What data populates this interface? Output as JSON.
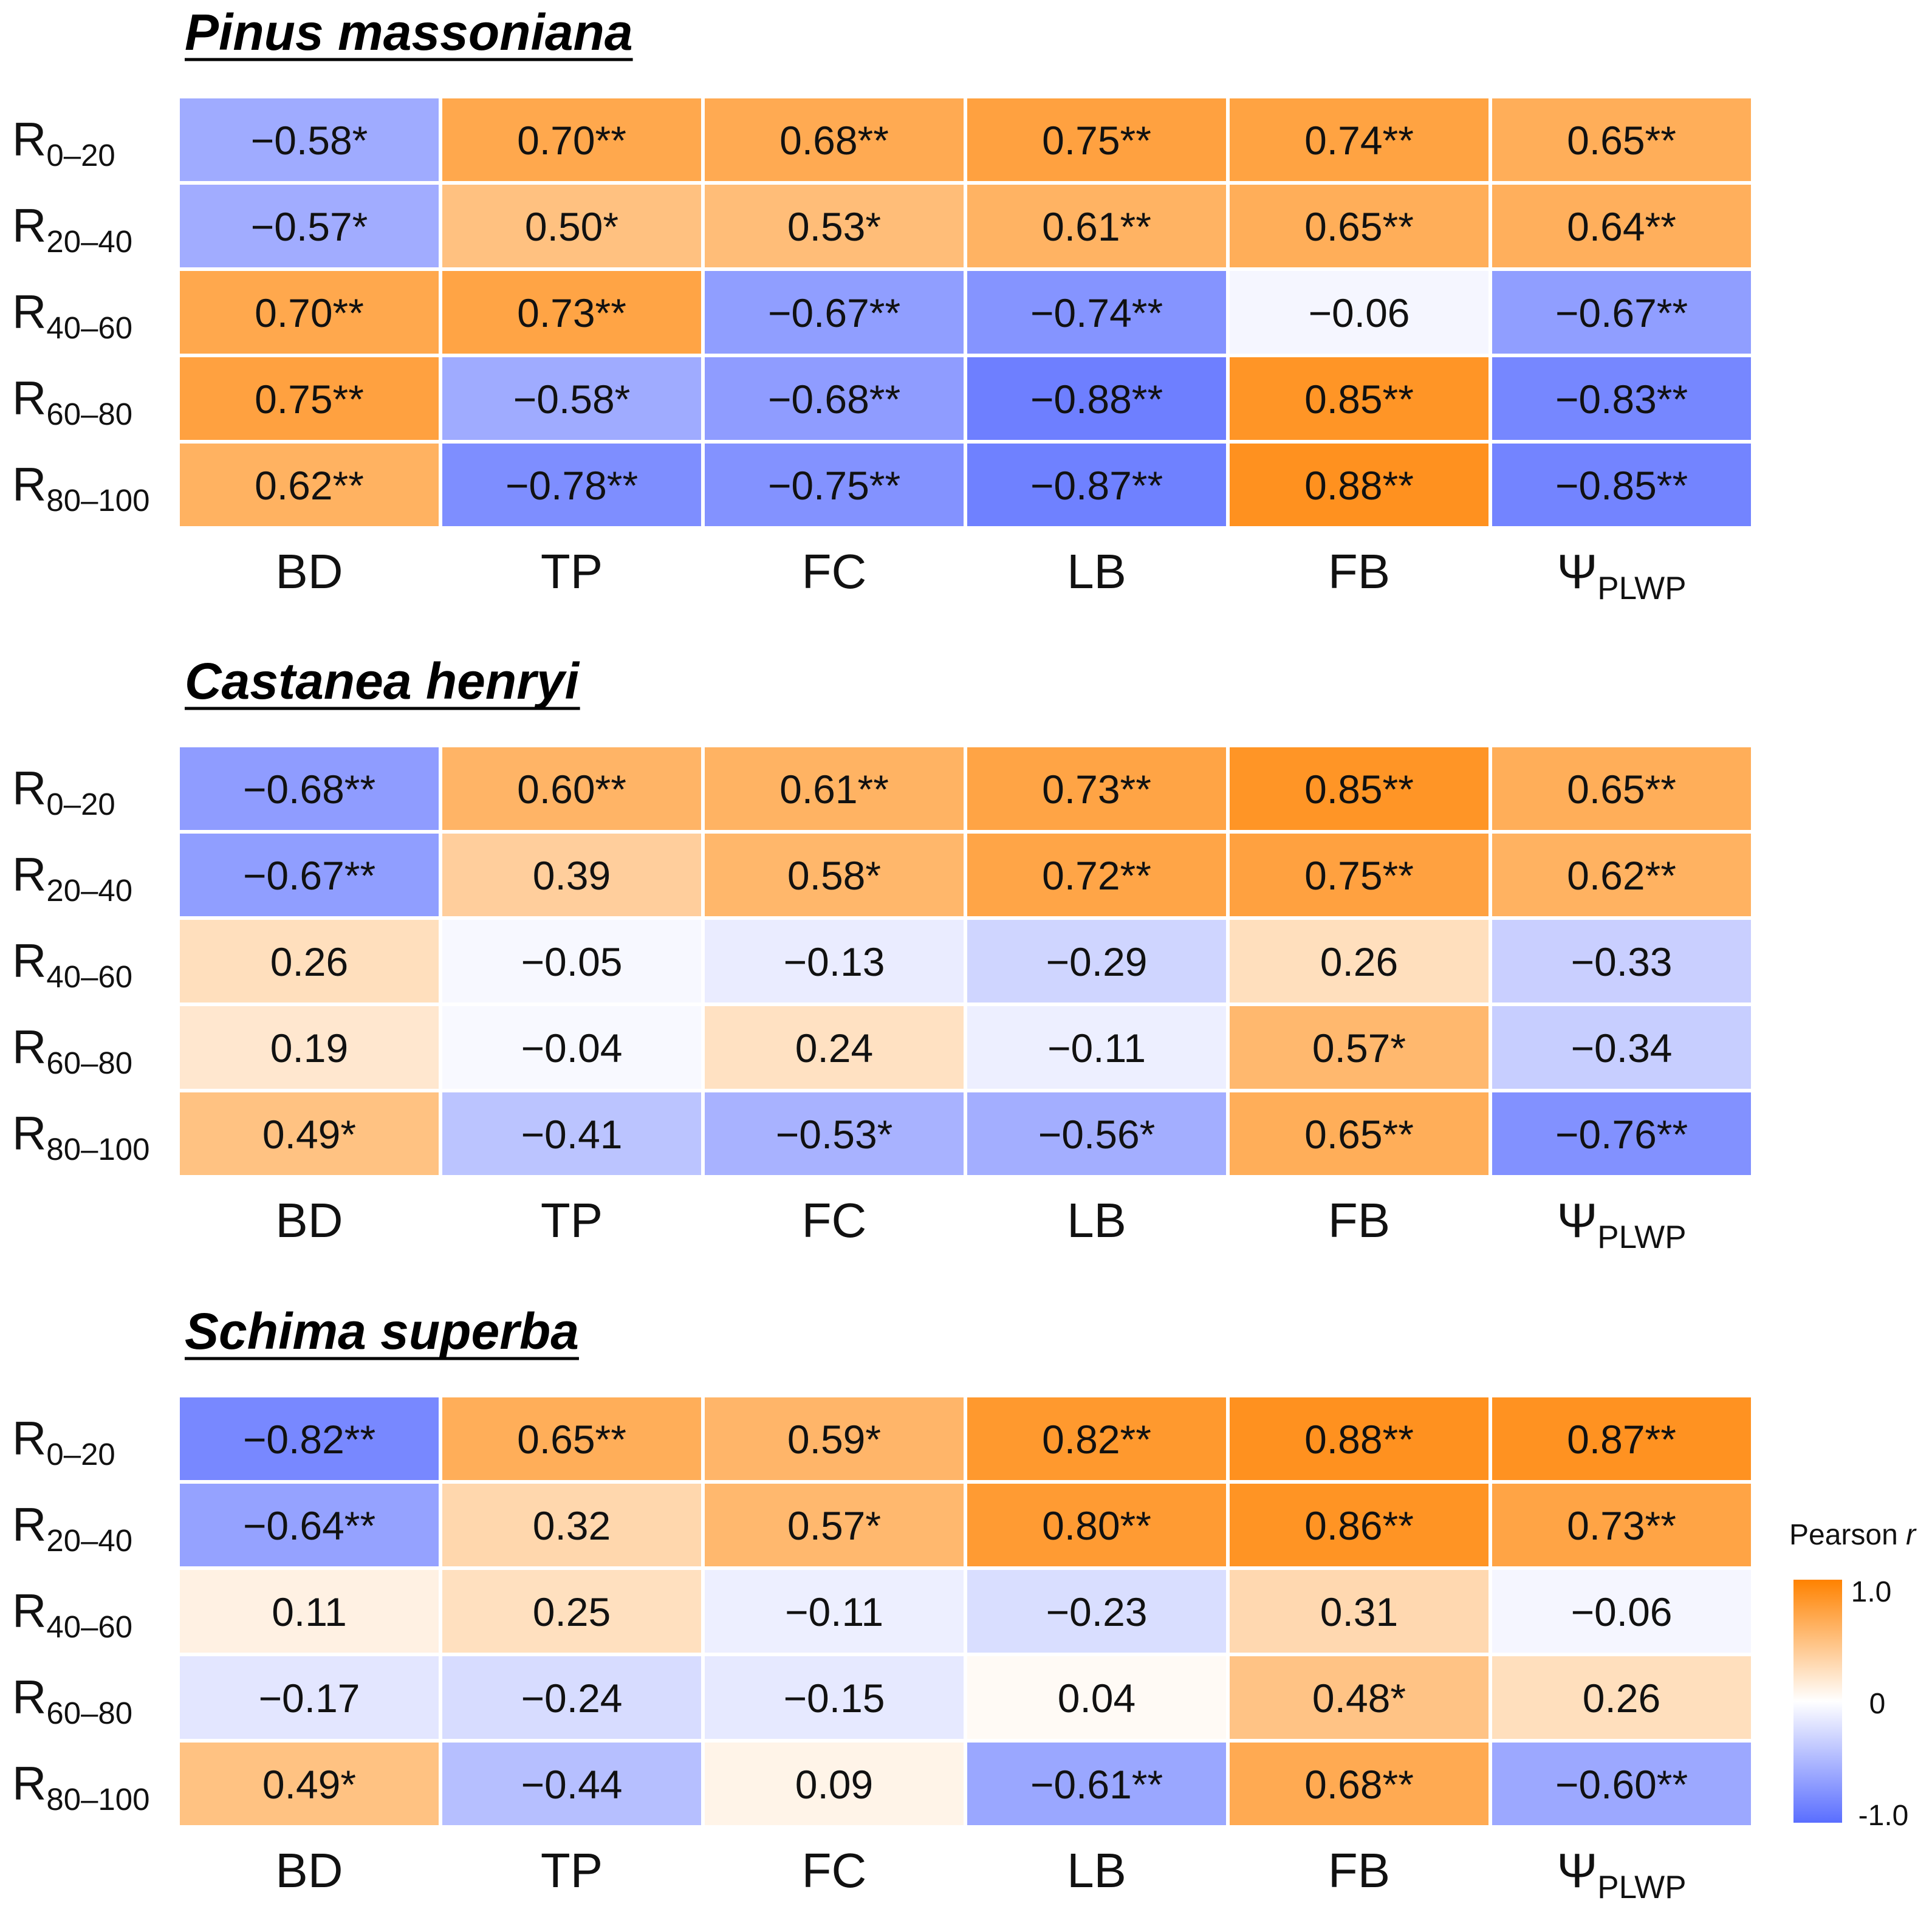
{
  "chart_data": [
    {
      "type": "heatmap",
      "title": "Pinus massoniana",
      "rows": [
        {
          "base": "R",
          "sub": "0–20"
        },
        {
          "base": "R",
          "sub": "20–40"
        },
        {
          "base": "R",
          "sub": "40–60"
        },
        {
          "base": "R",
          "sub": "60–80"
        },
        {
          "base": "R",
          "sub": "80–100"
        }
      ],
      "columns": [
        {
          "base": "BD",
          "sub": ""
        },
        {
          "base": "TP",
          "sub": ""
        },
        {
          "base": "FC",
          "sub": ""
        },
        {
          "base": "LB",
          "sub": ""
        },
        {
          "base": "FB",
          "sub": ""
        },
        {
          "base": "Ψ",
          "sub": "PLWP"
        }
      ],
      "values": [
        [
          -0.58,
          0.7,
          0.68,
          0.75,
          0.74,
          0.65
        ],
        [
          -0.57,
          0.5,
          0.53,
          0.61,
          0.65,
          0.64
        ],
        [
          0.7,
          0.73,
          -0.67,
          -0.74,
          -0.06,
          -0.67
        ],
        [
          0.75,
          -0.58,
          -0.68,
          -0.88,
          0.85,
          -0.83
        ],
        [
          0.62,
          -0.78,
          -0.75,
          -0.87,
          0.88,
          -0.85
        ]
      ],
      "labels": [
        [
          "−0.58*",
          "0.70**",
          "0.68**",
          "0.75**",
          "0.74**",
          "0.65**"
        ],
        [
          "−0.57*",
          "0.50*",
          "0.53*",
          "0.61**",
          "0.65**",
          "0.64**"
        ],
        [
          "0.70**",
          "0.73**",
          "−0.67**",
          "−0.74**",
          "−0.06",
          "−0.67**"
        ],
        [
          "0.75**",
          "−0.58*",
          "−0.68**",
          "−0.88**",
          "0.85**",
          "−0.83**"
        ],
        [
          "0.62**",
          "−0.78**",
          "−0.75**",
          "−0.87**",
          "0.88**",
          "−0.85**"
        ]
      ]
    },
    {
      "type": "heatmap",
      "title": "Castanea henryi",
      "rows": [
        {
          "base": "R",
          "sub": "0–20"
        },
        {
          "base": "R",
          "sub": "20–40"
        },
        {
          "base": "R",
          "sub": "40–60"
        },
        {
          "base": "R",
          "sub": "60–80"
        },
        {
          "base": "R",
          "sub": "80–100"
        }
      ],
      "columns": [
        {
          "base": "BD",
          "sub": ""
        },
        {
          "base": "TP",
          "sub": ""
        },
        {
          "base": "FC",
          "sub": ""
        },
        {
          "base": "LB",
          "sub": ""
        },
        {
          "base": "FB",
          "sub": ""
        },
        {
          "base": "Ψ",
          "sub": "PLWP"
        }
      ],
      "values": [
        [
          -0.68,
          0.6,
          0.61,
          0.73,
          0.85,
          0.65
        ],
        [
          -0.67,
          0.39,
          0.58,
          0.72,
          0.75,
          0.62
        ],
        [
          0.26,
          -0.05,
          -0.13,
          -0.29,
          0.26,
          -0.33
        ],
        [
          0.19,
          -0.04,
          0.24,
          -0.11,
          0.57,
          -0.34
        ],
        [
          0.49,
          -0.41,
          -0.53,
          -0.56,
          0.65,
          -0.76
        ]
      ],
      "labels": [
        [
          "−0.68**",
          "0.60**",
          "0.61**",
          "0.73**",
          "0.85**",
          "0.65**"
        ],
        [
          "−0.67**",
          "0.39",
          "0.58*",
          "0.72**",
          "0.75**",
          "0.62**"
        ],
        [
          "0.26",
          "−0.05",
          "−0.13",
          "−0.29",
          "0.26",
          "−0.33"
        ],
        [
          "0.19",
          "−0.04",
          "0.24",
          "−0.11",
          "0.57*",
          "−0.34"
        ],
        [
          "0.49*",
          "−0.41",
          "−0.53*",
          "−0.56*",
          "0.65**",
          "−0.76**"
        ]
      ]
    },
    {
      "type": "heatmap",
      "title": "Schima superba",
      "rows": [
        {
          "base": "R",
          "sub": "0–20"
        },
        {
          "base": "R",
          "sub": "20–40"
        },
        {
          "base": "R",
          "sub": "40–60"
        },
        {
          "base": "R",
          "sub": "60–80"
        },
        {
          "base": "R",
          "sub": "80–100"
        }
      ],
      "columns": [
        {
          "base": "BD",
          "sub": ""
        },
        {
          "base": "TP",
          "sub": ""
        },
        {
          "base": "FC",
          "sub": ""
        },
        {
          "base": "LB",
          "sub": ""
        },
        {
          "base": "FB",
          "sub": ""
        },
        {
          "base": "Ψ",
          "sub": "PLWP"
        }
      ],
      "values": [
        [
          -0.82,
          0.65,
          0.59,
          0.82,
          0.88,
          0.87
        ],
        [
          -0.64,
          0.32,
          0.57,
          0.8,
          0.86,
          0.73
        ],
        [
          0.11,
          0.25,
          -0.11,
          -0.23,
          0.31,
          -0.06
        ],
        [
          -0.17,
          -0.24,
          -0.15,
          0.04,
          0.48,
          0.26
        ],
        [
          0.49,
          -0.44,
          0.09,
          -0.61,
          0.68,
          -0.6
        ]
      ],
      "labels": [
        [
          "−0.82**",
          "0.65**",
          "0.59*",
          "0.82**",
          "0.88**",
          "0.87**"
        ],
        [
          "−0.64**",
          "0.32",
          "0.57*",
          "0.80**",
          "0.86**",
          "0.73**"
        ],
        [
          "0.11",
          "0.25",
          "−0.11",
          "−0.23",
          "0.31",
          "−0.06"
        ],
        [
          "−0.17",
          "−0.24",
          "−0.15",
          "0.04",
          "0.48*",
          "0.26"
        ],
        [
          "0.49*",
          "−0.44",
          "0.09",
          "−0.61**",
          "0.68**",
          "−0.60**"
        ]
      ]
    }
  ],
  "legend": {
    "title": "Pearson r",
    "title_text": "Pearson ",
    "title_var": "r",
    "max_label": "1.0",
    "mid_label": "0",
    "min_label": "-1.0",
    "min": -1.0,
    "max": 1.0
  },
  "colors": {
    "positive": "#ff8200",
    "neutral": "#ffffff",
    "negative": "#5a6eff",
    "grid": "#ffffff",
    "text": "#111111"
  }
}
